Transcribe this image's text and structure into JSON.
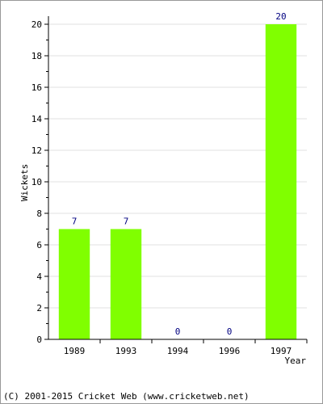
{
  "chart_data": {
    "type": "bar",
    "categories": [
      "1989",
      "1993",
      "1994",
      "1996",
      "1997"
    ],
    "values": [
      7,
      7,
      0,
      0,
      20
    ],
    "data_labels": [
      "7",
      "7",
      "0",
      "0",
      "20"
    ],
    "title": "",
    "xlabel": "Year",
    "ylabel": "Wickets",
    "ylim": [
      0,
      20
    ],
    "yticks": [
      "0",
      "2",
      "4",
      "6",
      "8",
      "10",
      "12",
      "14",
      "16",
      "18",
      "20"
    ],
    "grid": true,
    "bar_color": "#80ff00",
    "value_label_color": "#000080",
    "grid_color": "#e0e0e0"
  },
  "footer": "(C) 2001-2015 Cricket Web (www.cricketweb.net)"
}
